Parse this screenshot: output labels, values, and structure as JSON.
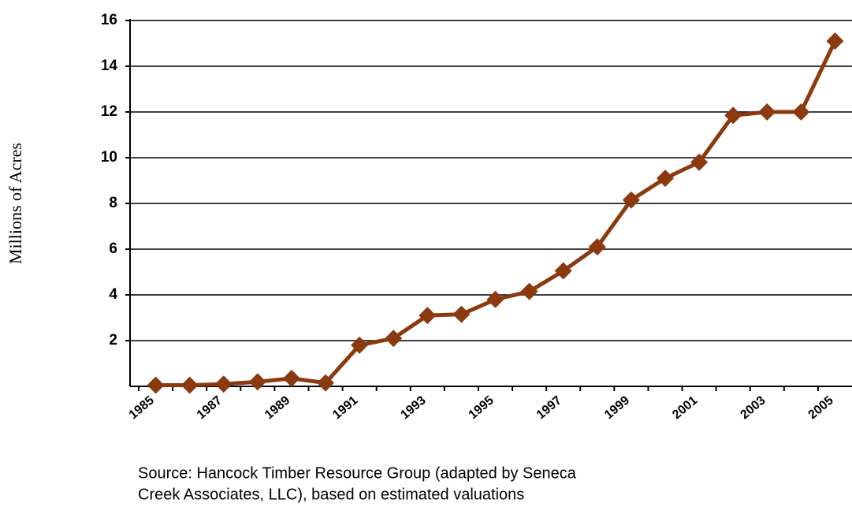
{
  "chart_data": {
    "type": "line",
    "y_label": "Millions of Acres",
    "source": [
      "Source:  Hancock Timber Resource Group (adapted by Seneca",
      "Creek Associates, LLC), based on estimated valuations"
    ],
    "categories": [
      "1985",
      null,
      "1987",
      null,
      "1989",
      null,
      "1991",
      null,
      "1993",
      null,
      "1995",
      null,
      "1997",
      null,
      "1999",
      null,
      "2001",
      null,
      "2003",
      null,
      "2005"
    ],
    "values": [
      0.05,
      0.05,
      0.1,
      0.2,
      0.35,
      0.15,
      1.8,
      2.1,
      3.1,
      3.15,
      3.8,
      4.15,
      5.05,
      6.1,
      8.15,
      9.1,
      9.8,
      11.85,
      12.0,
      12.0,
      15.1
    ],
    "color": "#8b3a0f",
    "ylim": [
      0,
      16
    ],
    "yticks": [
      2,
      4,
      6,
      8,
      10,
      12,
      14,
      16
    ],
    "grid": true
  }
}
